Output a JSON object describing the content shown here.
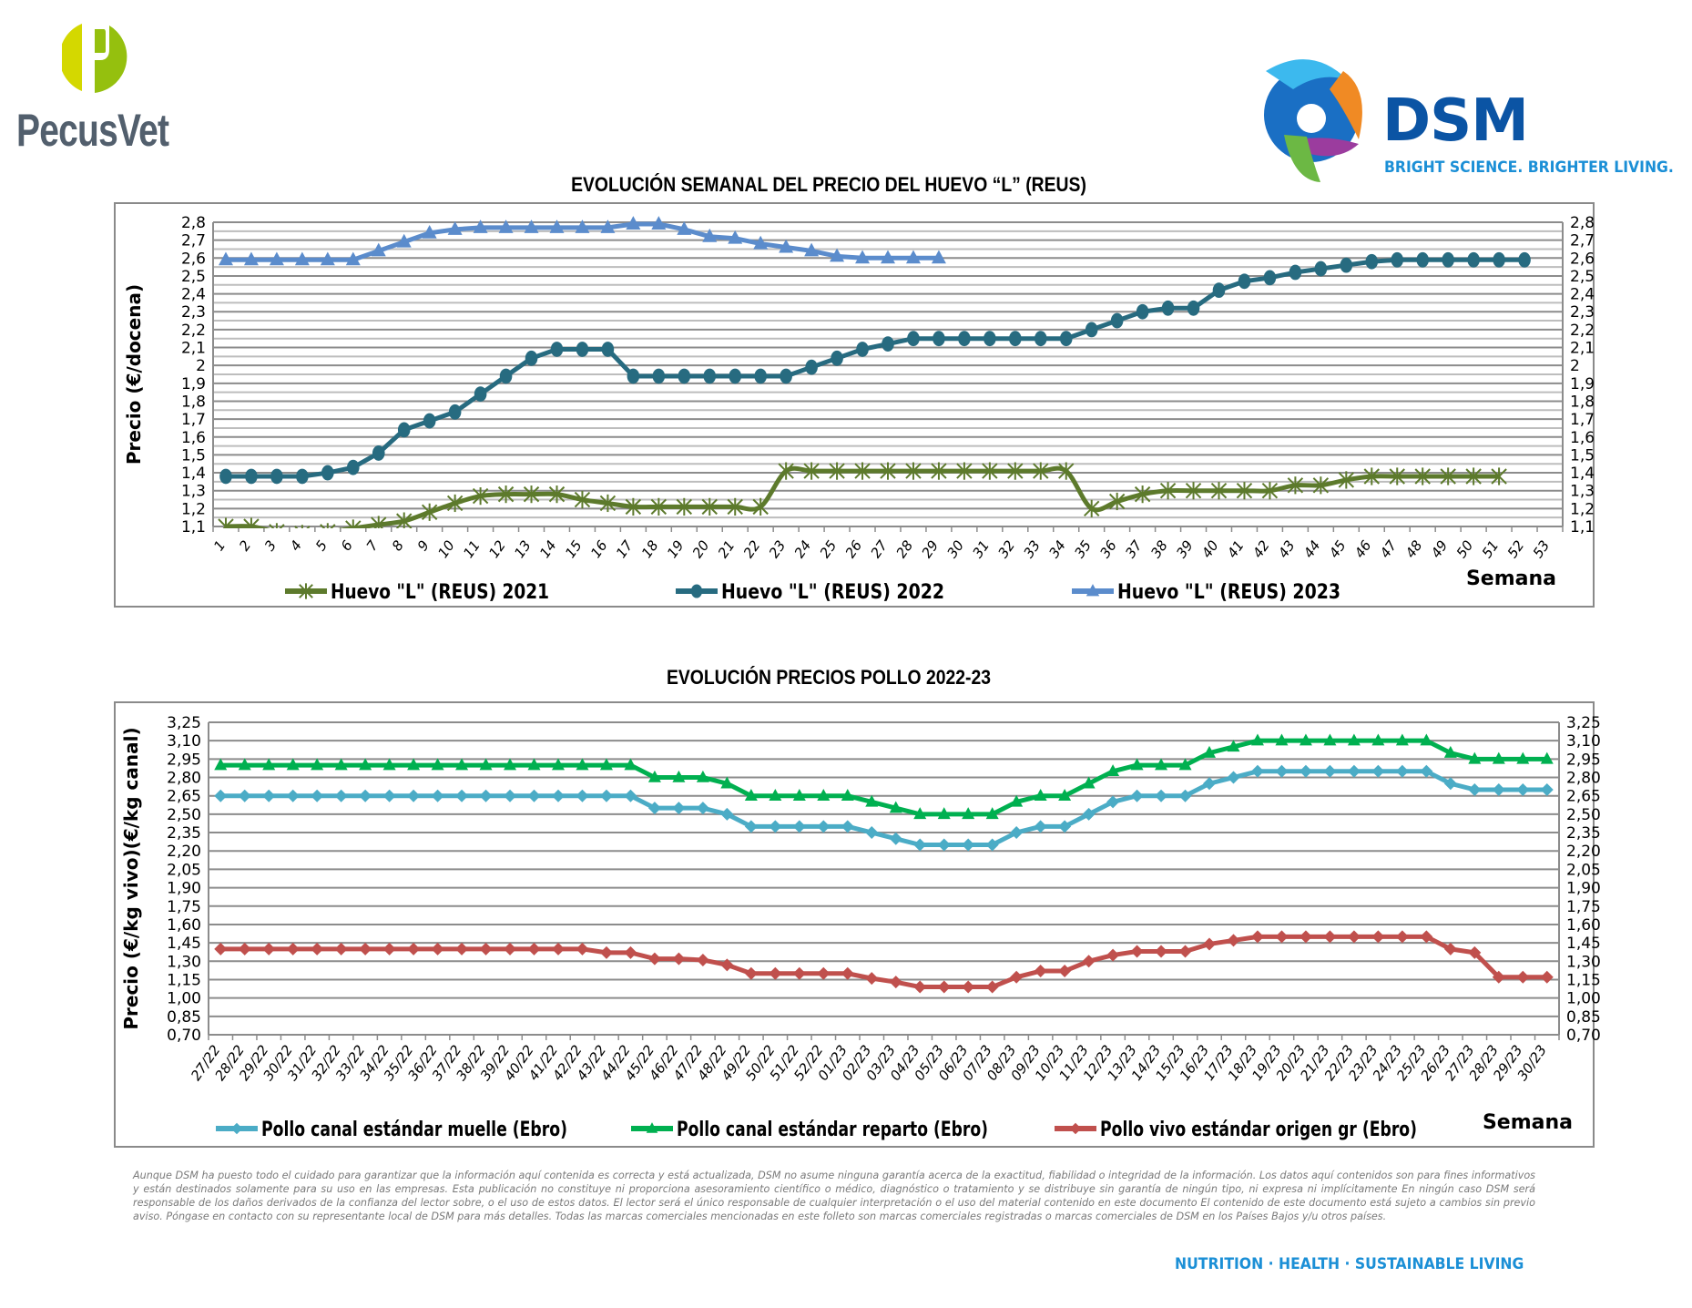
{
  "header": {
    "left_logo_text": "PecusVet",
    "right_logo_text": "DSM",
    "right_logo_tagline": "BRIGHT SCIENCE. BRIGHTER LIVING."
  },
  "chart_data": [
    {
      "id": "egg",
      "type": "line",
      "title": "EVOLUCIÓN SEMANAL DEL PRECIO DEL HUEVO “L” (REUS)",
      "xlabel": "Semana",
      "ylabel": "Precio (€/docena)",
      "ylim": [
        1.1,
        2.8
      ],
      "yticks": [
        1.1,
        1.2,
        1.3,
        1.4,
        1.5,
        1.6,
        1.7,
        1.8,
        1.9,
        2,
        2.1,
        2.2,
        2.3,
        2.4,
        2.5,
        2.6,
        2.7,
        2.8
      ],
      "ytick_labels": [
        "1,1",
        "1,2",
        "1,3",
        "1,4",
        "1,5",
        "1,6",
        "1,7",
        "1,8",
        "1,9",
        "2",
        "2,1",
        "2,2",
        "2,3",
        "2,4",
        "2,5",
        "2,6",
        "2,7",
        "2,8"
      ],
      "y_minor_step": 0.05,
      "axis_right_mirror": true,
      "grid": true,
      "legend_position": "bottom",
      "x": [
        "1",
        "2",
        "3",
        "4",
        "5",
        "6",
        "7",
        "8",
        "9",
        "10",
        "11",
        "12",
        "13",
        "14",
        "15",
        "16",
        "17",
        "18",
        "19",
        "20",
        "21",
        "22",
        "23",
        "24",
        "25",
        "26",
        "27",
        "28",
        "29",
        "30",
        "31",
        "32",
        "33",
        "34",
        "35",
        "36",
        "37",
        "38",
        "39",
        "40",
        "41",
        "42",
        "43",
        "44",
        "45",
        "46",
        "47",
        "48",
        "49",
        "50",
        "51",
        "52",
        "53"
      ],
      "series": [
        {
          "name": "Huevo \"L\" (REUS) 2021",
          "color": "#5d7a2c",
          "marker": "asterisk",
          "smooth": true,
          "values": [
            1.1,
            1.1,
            1.07,
            1.06,
            1.07,
            1.09,
            1.11,
            1.13,
            1.18,
            1.23,
            1.27,
            1.28,
            1.28,
            1.28,
            1.25,
            1.23,
            1.21,
            1.21,
            1.21,
            1.21,
            1.21,
            1.21,
            1.41,
            1.41,
            1.41,
            1.41,
            1.41,
            1.41,
            1.41,
            1.41,
            1.41,
            1.41,
            1.41,
            1.41,
            1.2,
            1.24,
            1.28,
            1.3,
            1.3,
            1.3,
            1.3,
            1.3,
            1.33,
            1.33,
            1.36,
            1.38,
            1.38,
            1.38,
            1.38,
            1.38,
            1.38
          ]
        },
        {
          "name": "Huevo \"L\" (REUS) 2022",
          "color": "#276b80",
          "marker": "circle",
          "smooth": false,
          "values": [
            1.38,
            1.38,
            1.38,
            1.38,
            1.4,
            1.43,
            1.51,
            1.64,
            1.69,
            1.74,
            1.84,
            1.94,
            2.04,
            2.09,
            2.09,
            2.09,
            1.94,
            1.94,
            1.94,
            1.94,
            1.94,
            1.94,
            1.94,
            1.99,
            2.04,
            2.09,
            2.12,
            2.15,
            2.15,
            2.15,
            2.15,
            2.15,
            2.15,
            2.15,
            2.2,
            2.25,
            2.3,
            2.32,
            2.32,
            2.42,
            2.47,
            2.49,
            2.52,
            2.54,
            2.56,
            2.58,
            2.59,
            2.59,
            2.59,
            2.59,
            2.59,
            2.59
          ]
        },
        {
          "name": "Huevo \"L\" (REUS) 2023",
          "color": "#5b8ccc",
          "marker": "triangle",
          "smooth": false,
          "values": [
            2.59,
            2.59,
            2.59,
            2.59,
            2.59,
            2.59,
            2.64,
            2.69,
            2.74,
            2.76,
            2.77,
            2.77,
            2.77,
            2.77,
            2.77,
            2.77,
            2.79,
            2.79,
            2.76,
            2.72,
            2.71,
            2.68,
            2.66,
            2.64,
            2.61,
            2.6,
            2.6,
            2.6,
            2.6
          ]
        }
      ]
    },
    {
      "id": "chicken",
      "type": "line",
      "title": "EVOLUCIÓN PRECIOS POLLO 2022-23",
      "xlabel": "Semana",
      "ylabel": "Precio (€/kg vivo)(€/kg canal)",
      "ylim": [
        0.7,
        3.25
      ],
      "yticks": [
        0.7,
        0.85,
        1.0,
        1.15,
        1.3,
        1.45,
        1.6,
        1.75,
        1.9,
        2.05,
        2.2,
        2.35,
        2.5,
        2.65,
        2.8,
        2.95,
        3.1,
        3.25
      ],
      "ytick_labels": [
        "0,70",
        "0,85",
        "1,00",
        "1,15",
        "1,30",
        "1,45",
        "1,60",
        "1,75",
        "1,90",
        "2,05",
        "2,20",
        "2,35",
        "2,50",
        "2,65",
        "2,80",
        "2,95",
        "3,10",
        "3,25"
      ],
      "axis_right_mirror": true,
      "grid": true,
      "legend_position": "bottom",
      "x": [
        "27/22",
        "28/22",
        "29/22",
        "30/22",
        "31/22",
        "32/22",
        "33/22",
        "34/22",
        "35/22",
        "36/22",
        "37/22",
        "38/22",
        "39/22",
        "40/22",
        "41/22",
        "42/22",
        "43/22",
        "44/22",
        "45/22",
        "46/22",
        "47/22",
        "48/22",
        "49/22",
        "50/22",
        "51/22",
        "52/22",
        "01/23",
        "02/23",
        "03/23",
        "04/23",
        "05/23",
        "06/23",
        "07/23",
        "08/23",
        "09/23",
        "10/23",
        "11/23",
        "12/23",
        "13/23",
        "14/23",
        "15/23",
        "16/23",
        "17/23",
        "18/23",
        "19/23",
        "20/23",
        "21/23",
        "22/23",
        "23/23",
        "24/23",
        "25/23",
        "26/23",
        "27/23",
        "28/23",
        "29/23",
        "30/23"
      ],
      "series": [
        {
          "name": "Pollo canal estándar muelle (Ebro)",
          "color": "#4bacc6",
          "marker": "diamond",
          "values": [
            2.65,
            2.65,
            2.65,
            2.65,
            2.65,
            2.65,
            2.65,
            2.65,
            2.65,
            2.65,
            2.65,
            2.65,
            2.65,
            2.65,
            2.65,
            2.65,
            2.65,
            2.65,
            2.55,
            2.55,
            2.55,
            2.5,
            2.4,
            2.4,
            2.4,
            2.4,
            2.4,
            2.35,
            2.3,
            2.25,
            2.25,
            2.25,
            2.25,
            2.35,
            2.4,
            2.4,
            2.5,
            2.6,
            2.65,
            2.65,
            2.65,
            2.75,
            2.8,
            2.85,
            2.85,
            2.85,
            2.85,
            2.85,
            2.85,
            2.85,
            2.85,
            2.75,
            2.7,
            2.7,
            2.7,
            2.7
          ]
        },
        {
          "name": "Pollo canal estándar reparto (Ebro)",
          "color": "#00b050",
          "marker": "triangle",
          "values": [
            2.9,
            2.9,
            2.9,
            2.9,
            2.9,
            2.9,
            2.9,
            2.9,
            2.9,
            2.9,
            2.9,
            2.9,
            2.9,
            2.9,
            2.9,
            2.9,
            2.9,
            2.9,
            2.8,
            2.8,
            2.8,
            2.75,
            2.65,
            2.65,
            2.65,
            2.65,
            2.65,
            2.6,
            2.55,
            2.5,
            2.5,
            2.5,
            2.5,
            2.6,
            2.65,
            2.65,
            2.75,
            2.85,
            2.9,
            2.9,
            2.9,
            3.0,
            3.05,
            3.1,
            3.1,
            3.1,
            3.1,
            3.1,
            3.1,
            3.1,
            3.1,
            3.0,
            2.95,
            2.95,
            2.95,
            2.95
          ]
        },
        {
          "name": "Pollo vivo estándar origen gr (Ebro)",
          "color": "#c0504d",
          "marker": "diamond",
          "values": [
            1.4,
            1.4,
            1.4,
            1.4,
            1.4,
            1.4,
            1.4,
            1.4,
            1.4,
            1.4,
            1.4,
            1.4,
            1.4,
            1.4,
            1.4,
            1.4,
            1.37,
            1.37,
            1.32,
            1.32,
            1.31,
            1.27,
            1.2,
            1.2,
            1.2,
            1.2,
            1.2,
            1.16,
            1.13,
            1.09,
            1.09,
            1.09,
            1.09,
            1.17,
            1.22,
            1.22,
            1.3,
            1.35,
            1.38,
            1.38,
            1.38,
            1.44,
            1.47,
            1.5,
            1.5,
            1.5,
            1.5,
            1.5,
            1.5,
            1.5,
            1.5,
            1.4,
            1.37,
            1.17,
            1.17,
            1.17
          ]
        }
      ]
    }
  ],
  "disclaimer": "Aunque DSM ha puesto todo el cuidado para garantizar que la información aquí contenida es correcta y está actualizada, DSM no asume ninguna garantía acerca de la exactitud, fiabilidad o integridad de la información. Los datos aquí contenidos son para fines informativos y están destinados solamente para su uso en las empresas. Esta publicación no constituye ni proporciona asesoramiento científico o médico, diagnóstico o tratamiento y se distribuye sin garantía de ningún tipo, ni expresa ni implícitamente En ningún caso DSM será responsable de los daños derivados de la confianza del lector sobre, o el uso de estos datos. El lector será el único responsable de cualquier interpretación o el uso del material contenido en este documento El contenido de este documento está sujeto a cambios sin previo aviso. Póngase en contacto con su representante local de DSM para más detalles. Todas las marcas comerciales mencionadas en este folleto son marcas comerciales registradas o marcas comerciales de DSM en los Países Bajos y/u otros países.",
  "footer_tagline": "NUTRITION  ·  HEALTH  ·  SUSTAINABLE LIVING"
}
